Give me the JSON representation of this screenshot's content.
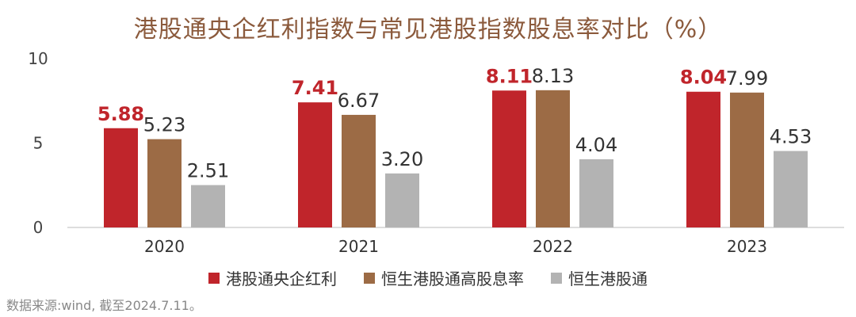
{
  "chart_data": {
    "type": "bar",
    "title": "港股通央企红利指数与常见港股指数股息率对比（%）",
    "categories": [
      "2020",
      "2021",
      "2022",
      "2023"
    ],
    "series": [
      {
        "name": "港股通央企红利",
        "values": [
          5.88,
          7.41,
          8.11,
          8.04
        ],
        "labels": [
          "5.88",
          "7.41",
          "8.11",
          "8.04"
        ],
        "color": "#c0252b",
        "label_color": "#c0252b",
        "label_bold": true
      },
      {
        "name": "恒生港股通高股息率",
        "values": [
          5.23,
          6.67,
          8.13,
          7.99
        ],
        "labels": [
          "5.23",
          "6.67",
          "8.13",
          "7.99"
        ],
        "color": "#9c6b45",
        "label_color": "#333333",
        "label_bold": false
      },
      {
        "name": "恒生港股通",
        "values": [
          2.51,
          3.2,
          4.04,
          4.53
        ],
        "labels": [
          "2.51",
          "3.20",
          "4.04",
          "4.53"
        ],
        "color": "#b3b3b3",
        "label_color": "#333333",
        "label_bold": false
      }
    ],
    "yticks": [
      "0",
      "5",
      "10"
    ],
    "ylim": [
      0,
      10
    ],
    "grid": false,
    "legend": "bottom"
  },
  "source": "数据来源:wind, 截至2024.7.11。"
}
